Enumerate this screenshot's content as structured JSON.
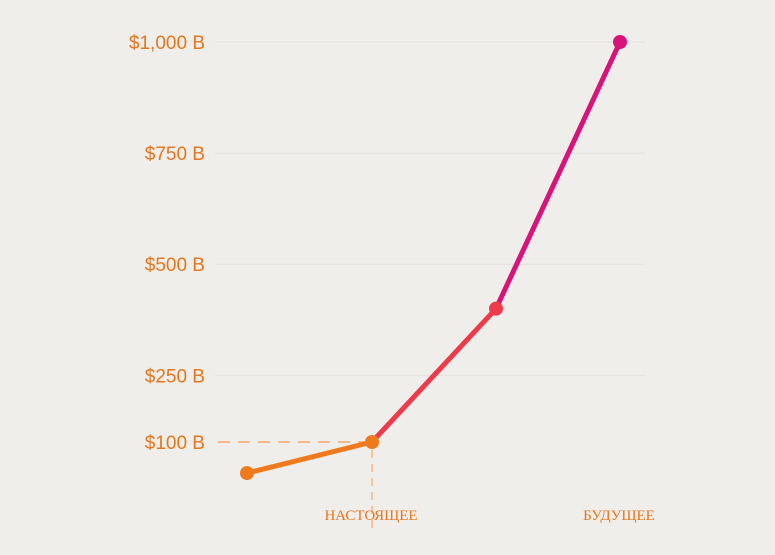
{
  "chart_data": {
    "type": "line",
    "x": [
      "",
      "НАСТОЯЩЕЕ",
      "",
      "БУДУЩЕЕ"
    ],
    "values": [
      30,
      100,
      400,
      1000
    ],
    "ylim": [
      -40,
      1000
    ],
    "yticks": [
      100,
      250,
      500,
      750,
      1000
    ],
    "ytick_labels": [
      "$100 B",
      "$250 B",
      "$500 B",
      "$750 B",
      "$1,000 B"
    ],
    "xtick_labels": [
      "НАСТОЯЩЕЕ",
      "БУДУЩЕЕ"
    ],
    "highlight_value": 100,
    "grid": true,
    "colors": {
      "start": "#ef7a1d",
      "mid": "#ef3a4b",
      "end": "#d8137a",
      "axis_text": "#e8761c",
      "guide": "#f6b888"
    }
  }
}
